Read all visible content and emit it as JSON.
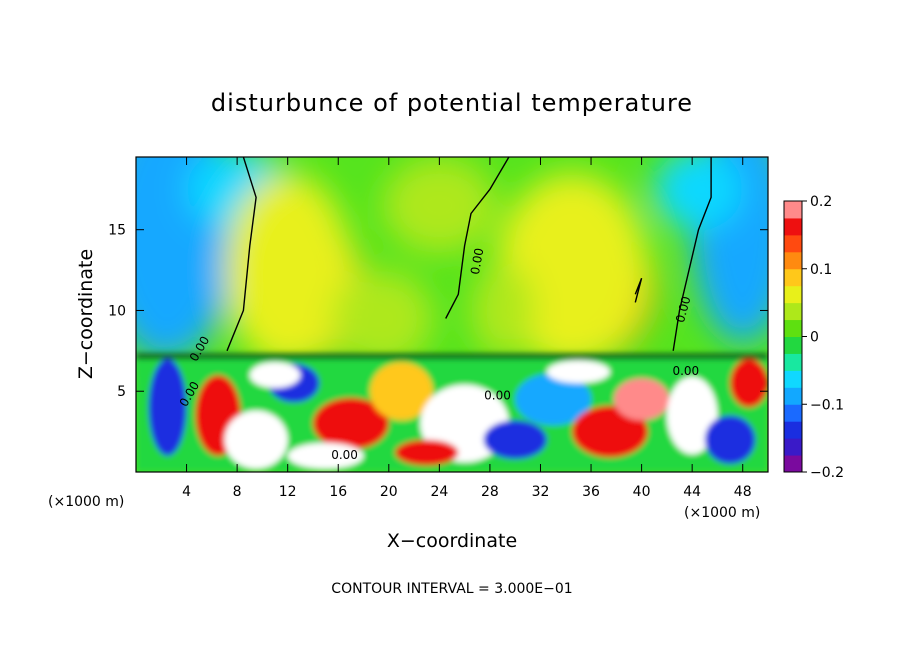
{
  "chart_data": {
    "type": "heatmap",
    "title": "disturbunce of potential temperature",
    "xlabel": "X−coordinate",
    "ylabel": "Z−coordinate",
    "x_unit_left": "(×1000 m)",
    "x_unit_right": "(×1000 m)",
    "footnote": "CONTOUR INTERVAL = 3.000E−01",
    "xlim": [
      0,
      50
    ],
    "ylim": [
      0,
      19.5
    ],
    "x_ticks": [
      4,
      8,
      12,
      16,
      20,
      24,
      28,
      32,
      36,
      40,
      44,
      48
    ],
    "y_ticks": [
      5,
      10,
      15
    ],
    "colorbar": {
      "range": [
        -0.2,
        0.2
      ],
      "ticks": [
        0.2,
        0.1,
        0,
        -0.1,
        -0.2
      ],
      "tick_labels": [
        "0.2",
        "0.1",
        "0",
        "−0.1",
        "−0.2"
      ],
      "colors": [
        "#7a0a9e",
        "#3a1ac8",
        "#1a2ee0",
        "#1a6aff",
        "#12a8ff",
        "#10d8ff",
        "#18e8a0",
        "#22d840",
        "#5ee010",
        "#aee81a",
        "#e8f01a",
        "#ffc81a",
        "#ff8a10",
        "#ff4a10",
        "#ee1010",
        "#ff8a8a"
      ]
    },
    "contour_labels": [
      "0.00",
      "0.00",
      "0.00",
      "0.00",
      "0.00",
      "0.00",
      "0.00"
    ],
    "colors": {
      "neg_strong": "#7a0a9e",
      "neg": "#1a2ee0",
      "zero": "#22d840",
      "pos": "#ffc81a",
      "pos_strong": "#ee1010"
    }
  }
}
